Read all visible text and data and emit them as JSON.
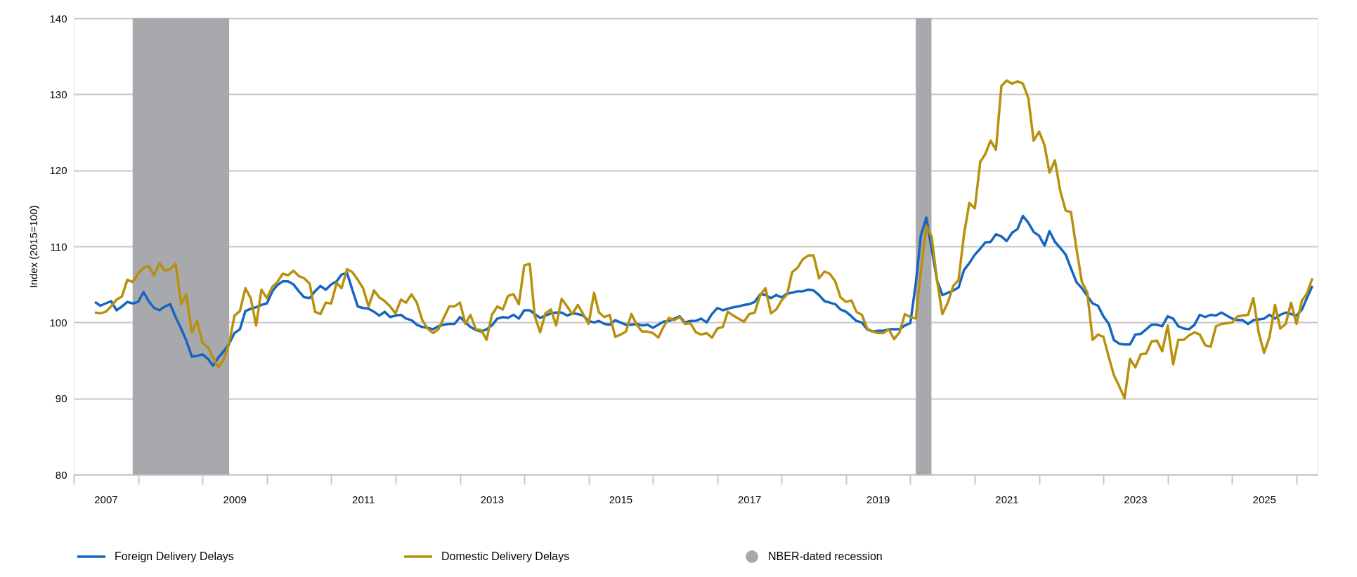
{
  "chart_data": {
    "type": "line",
    "ylabel": "Index (2015=100)",
    "x": [
      "2007-05",
      "2007-06",
      "2007-07",
      "2007-08",
      "2007-09",
      "2007-10",
      "2007-11",
      "2007-12",
      "2008-01",
      "2008-02",
      "2008-03",
      "2008-04",
      "2008-05",
      "2008-06",
      "2008-07",
      "2008-08",
      "2008-09",
      "2008-10",
      "2008-11",
      "2008-12",
      "2009-01",
      "2009-02",
      "2009-03",
      "2009-04",
      "2009-05",
      "2009-06",
      "2009-07",
      "2009-08",
      "2009-09",
      "2009-10",
      "2009-11",
      "2009-12",
      "2010-01",
      "2010-02",
      "2010-03",
      "2010-04",
      "2010-05",
      "2010-06",
      "2010-07",
      "2010-08",
      "2010-09",
      "2010-10",
      "2010-11",
      "2010-12",
      "2011-01",
      "2011-02",
      "2011-03",
      "2011-04",
      "2011-05",
      "2011-06",
      "2011-07",
      "2011-08",
      "2011-09",
      "2011-10",
      "2011-11",
      "2011-12",
      "2012-01",
      "2012-02",
      "2012-03",
      "2012-04",
      "2012-05",
      "2012-06",
      "2012-07",
      "2012-08",
      "2012-09",
      "2012-10",
      "2012-11",
      "2012-12",
      "2013-01",
      "2013-02",
      "2013-03",
      "2013-04",
      "2013-05",
      "2013-06",
      "2013-07",
      "2013-08",
      "2013-09",
      "2013-10",
      "2013-11",
      "2013-12",
      "2014-01",
      "2014-02",
      "2014-03",
      "2014-04",
      "2014-05",
      "2014-06",
      "2014-07",
      "2014-08",
      "2014-09",
      "2014-10",
      "2014-11",
      "2014-12",
      "2015-01",
      "2015-02",
      "2015-03",
      "2015-04",
      "2015-05",
      "2015-06",
      "2015-07",
      "2015-08",
      "2015-09",
      "2015-10",
      "2015-11",
      "2015-12",
      "2016-01",
      "2016-02",
      "2016-03",
      "2016-04",
      "2016-05",
      "2016-06",
      "2016-07",
      "2016-08",
      "2016-09",
      "2016-10",
      "2016-11",
      "2016-12",
      "2017-01",
      "2017-02",
      "2017-03",
      "2017-04",
      "2017-05",
      "2017-06",
      "2017-07",
      "2017-08",
      "2017-09",
      "2017-10",
      "2017-11",
      "2017-12",
      "2018-01",
      "2018-02",
      "2018-03",
      "2018-04",
      "2018-05",
      "2018-06",
      "2018-07",
      "2018-08",
      "2018-09",
      "2018-10",
      "2018-11",
      "2018-12",
      "2019-01",
      "2019-02",
      "2019-03",
      "2019-04",
      "2019-05",
      "2019-06",
      "2019-07",
      "2019-08",
      "2019-09",
      "2019-10",
      "2019-11",
      "2019-12",
      "2020-01",
      "2020-02",
      "2020-03",
      "2020-04",
      "2020-05",
      "2020-06",
      "2020-07",
      "2020-08",
      "2020-09",
      "2020-10",
      "2020-11",
      "2020-12",
      "2021-01",
      "2021-02",
      "2021-03",
      "2021-04",
      "2021-05",
      "2021-06",
      "2021-07",
      "2021-08",
      "2021-09",
      "2021-10",
      "2021-11",
      "2021-12",
      "2022-01",
      "2022-02",
      "2022-03",
      "2022-04",
      "2022-05",
      "2022-06",
      "2022-07",
      "2022-08",
      "2022-09",
      "2022-10",
      "2022-11",
      "2022-12",
      "2023-01",
      "2023-02",
      "2023-03",
      "2023-04",
      "2023-05",
      "2023-06",
      "2023-07",
      "2023-08",
      "2023-09",
      "2023-10",
      "2023-11",
      "2023-12",
      "2024-01",
      "2024-02",
      "2024-03",
      "2024-04",
      "2024-05",
      "2024-06",
      "2024-07",
      "2024-08",
      "2024-09",
      "2024-10",
      "2024-11",
      "2024-12",
      "2025-01",
      "2025-02",
      "2025-03",
      "2025-04",
      "2025-05",
      "2025-06",
      "2025-07",
      "2025-08",
      "2025-09",
      "2025-10",
      "2025-11",
      "2025-12",
      "2026-01",
      "2026-02",
      "2026-03",
      "2026-04"
    ],
    "series": [
      {
        "name": "Foreign Delivery Delays",
        "color": "#1565c0",
        "values": [
          102.7,
          102.2,
          102.5,
          102.8,
          101.6,
          102.1,
          102.7,
          102.5,
          102.7,
          104.0,
          102.8,
          101.9,
          101.6,
          102.1,
          102.4,
          100.7,
          99.2,
          97.6,
          95.5,
          95.6,
          95.8,
          95.2,
          94.3,
          95.4,
          96.2,
          97.2,
          98.6,
          99.1,
          101.5,
          101.8,
          102.0,
          102.3,
          102.5,
          104.1,
          104.9,
          105.4,
          105.4,
          105.0,
          104.1,
          103.3,
          103.2,
          104.1,
          104.8,
          104.3,
          105.0,
          105.4,
          106.3,
          106.5,
          104.3,
          102.1,
          101.9,
          101.8,
          101.4,
          100.9,
          101.4,
          100.7,
          100.9,
          101.0,
          100.5,
          100.3,
          99.7,
          99.4,
          99.3,
          99.1,
          99.5,
          99.7,
          99.8,
          99.8,
          100.7,
          100.0,
          99.4,
          99.0,
          98.8,
          99.1,
          99.6,
          100.5,
          100.7,
          100.6,
          101.0,
          100.5,
          101.6,
          101.6,
          101.1,
          100.6,
          100.9,
          101.2,
          101.3,
          101.3,
          100.9,
          101.2,
          101.1,
          100.9,
          100.2,
          100.0,
          100.2,
          99.8,
          99.7,
          100.3,
          100.0,
          99.7,
          99.7,
          99.8,
          99.6,
          99.7,
          99.3,
          99.7,
          100.1,
          100.2,
          100.5,
          100.8,
          100.0,
          100.2,
          100.2,
          100.5,
          100.0,
          101.1,
          101.9,
          101.6,
          101.8,
          102.0,
          102.1,
          102.3,
          102.4,
          102.7,
          103.7,
          103.6,
          103.2,
          103.6,
          103.3,
          103.8,
          103.9,
          104.1,
          104.1,
          104.3,
          104.2,
          103.6,
          102.8,
          102.6,
          102.4,
          101.7,
          101.4,
          100.8,
          100.2,
          100.0,
          99.1,
          98.8,
          98.9,
          98.9,
          99.1,
          99.1,
          99.1,
          99.6,
          99.9,
          105.1,
          111.4,
          113.8,
          109.7,
          105.5,
          103.6,
          103.9,
          104.2,
          104.6,
          106.9,
          107.8,
          108.9,
          109.7,
          110.5,
          110.6,
          111.6,
          111.3,
          110.7,
          111.8,
          112.3,
          114.0,
          113.1,
          111.9,
          111.4,
          110.1,
          112.0,
          110.6,
          109.8,
          108.9,
          107.1,
          105.3,
          104.5,
          103.5,
          102.5,
          102.2,
          100.8,
          99.8,
          97.7,
          97.2,
          97.1,
          97.1,
          98.4,
          98.5,
          99.1,
          99.7,
          99.7,
          99.5,
          100.8,
          100.5,
          99.5,
          99.2,
          99.1,
          99.7,
          101.0,
          100.7,
          101.0,
          100.9,
          101.3,
          100.9,
          100.5,
          100.3,
          100.3,
          99.8,
          100.3,
          100.4,
          100.5,
          101.0,
          100.5,
          101.0,
          101.3,
          101.1,
          100.9,
          101.7,
          103.2,
          104.8
        ]
      },
      {
        "name": "Domestic Delivery Delays",
        "color": "#b8900c",
        "values": [
          101.3,
          101.2,
          101.4,
          102.1,
          103.0,
          103.4,
          105.6,
          105.3,
          106.4,
          107.2,
          107.4,
          106.2,
          107.8,
          106.8,
          107.0,
          107.7,
          102.4,
          103.7,
          98.7,
          100.2,
          97.3,
          96.7,
          95.4,
          94.1,
          95.2,
          97.2,
          100.9,
          101.5,
          104.5,
          103.2,
          99.6,
          104.3,
          103.2,
          104.7,
          105.3,
          106.4,
          106.2,
          106.8,
          106.1,
          105.8,
          105.1,
          101.4,
          101.1,
          102.6,
          102.5,
          105.2,
          104.5,
          107.0,
          106.6,
          105.6,
          104.5,
          102.1,
          104.2,
          103.3,
          102.8,
          102.1,
          101.2,
          103.0,
          102.6,
          103.7,
          102.6,
          100.3,
          99.2,
          98.6,
          99.1,
          100.6,
          102.1,
          102.1,
          102.6,
          99.8,
          101.0,
          99.1,
          99.0,
          97.7,
          101.0,
          102.1,
          101.7,
          103.5,
          103.7,
          102.4,
          107.5,
          107.7,
          100.9,
          98.7,
          101.2,
          101.7,
          99.6,
          103.1,
          102.1,
          101.1,
          102.3,
          101.1,
          99.8,
          103.9,
          101.3,
          100.7,
          101.0,
          98.1,
          98.4,
          98.8,
          101.1,
          99.7,
          98.8,
          98.8,
          98.6,
          98.0,
          99.4,
          100.6,
          100.3,
          100.7,
          99.8,
          99.9,
          98.7,
          98.4,
          98.6,
          98.0,
          99.2,
          99.4,
          101.4,
          100.9,
          100.5,
          100.1,
          101.1,
          101.3,
          103.6,
          104.5,
          101.2,
          101.7,
          102.9,
          103.7,
          106.6,
          107.2,
          108.3,
          108.8,
          108.8,
          105.8,
          106.7,
          106.4,
          105.4,
          103.3,
          102.7,
          102.9,
          101.4,
          101.0,
          99.2,
          98.8,
          98.6,
          98.6,
          99.1,
          97.8,
          98.7,
          101.1,
          100.7,
          100.5,
          106.8,
          112.7,
          111.3,
          105.5,
          101.1,
          102.6,
          104.8,
          105.6,
          111.6,
          115.7,
          115.0,
          121.1,
          122.1,
          123.9,
          122.7,
          131.1,
          131.8,
          131.4,
          131.7,
          131.4,
          129.5,
          123.9,
          125.1,
          123.3,
          119.7,
          121.3,
          117.3,
          114.7,
          114.5,
          109.7,
          105.3,
          104.0,
          97.7,
          98.4,
          98.1,
          95.4,
          93.1,
          91.6,
          90.0,
          95.2,
          94.1,
          95.8,
          95.9,
          97.5,
          97.6,
          96.2,
          99.6,
          94.5,
          97.7,
          97.7,
          98.3,
          98.7,
          98.4,
          97.0,
          96.8,
          99.5,
          99.8,
          99.9,
          100.0,
          100.8,
          100.9,
          101.0,
          103.2,
          98.6,
          96.0,
          98.1,
          102.3,
          99.2,
          99.8,
          102.6,
          99.8,
          102.9,
          103.8,
          105.8
        ]
      }
    ],
    "bands": [
      {
        "axis": "x",
        "from": "2007-12",
        "to": "2009-06",
        "label": "NBER-dated recession",
        "color": "#a7a9ac"
      },
      {
        "axis": "x",
        "from": "2020-02",
        "to": "2020-04-30",
        "color": "#a7a9ac"
      }
    ],
    "xlim": [
      "2007-01",
      "2026-05"
    ],
    "xticks": [
      {
        "value": "2007-01",
        "label": null
      },
      {
        "value": "2007-07",
        "label": "2007"
      },
      {
        "value": "2008-01",
        "label": null
      },
      {
        "value": "2009-01",
        "label": null
      },
      {
        "value": "2009-07",
        "label": "2009"
      },
      {
        "value": "2010-01",
        "label": null
      },
      {
        "value": "2011-01",
        "label": null
      },
      {
        "value": "2011-07",
        "label": "2011"
      },
      {
        "value": "2012-01",
        "label": null
      },
      {
        "value": "2013-01",
        "label": null
      },
      {
        "value": "2013-07",
        "label": "2013"
      },
      {
        "value": "2014-01",
        "label": null
      },
      {
        "value": "2015-01",
        "label": null
      },
      {
        "value": "2015-07",
        "label": "2015"
      },
      {
        "value": "2016-01",
        "label": null
      },
      {
        "value": "2017-01",
        "label": null
      },
      {
        "value": "2017-07",
        "label": "2017"
      },
      {
        "value": "2018-01",
        "label": null
      },
      {
        "value": "2019-01",
        "label": null
      },
      {
        "value": "2019-07",
        "label": "2019"
      },
      {
        "value": "2020-01",
        "label": null
      },
      {
        "value": "2021-01",
        "label": null
      },
      {
        "value": "2021-07",
        "label": "2021"
      },
      {
        "value": "2022-01",
        "label": null
      },
      {
        "value": "2023-01",
        "label": null
      },
      {
        "value": "2023-07",
        "label": "2023"
      },
      {
        "value": "2024-01",
        "label": null
      },
      {
        "value": "2025-01",
        "label": null
      },
      {
        "value": "2025-07",
        "label": "2025"
      },
      {
        "value": "2026-01",
        "label": null
      }
    ],
    "ylim": [
      80,
      140
    ],
    "yticks": [
      80,
      90,
      100,
      110,
      120,
      130,
      140
    ],
    "grid": "y",
    "legend": "bottom left",
    "line_style": "solid"
  }
}
